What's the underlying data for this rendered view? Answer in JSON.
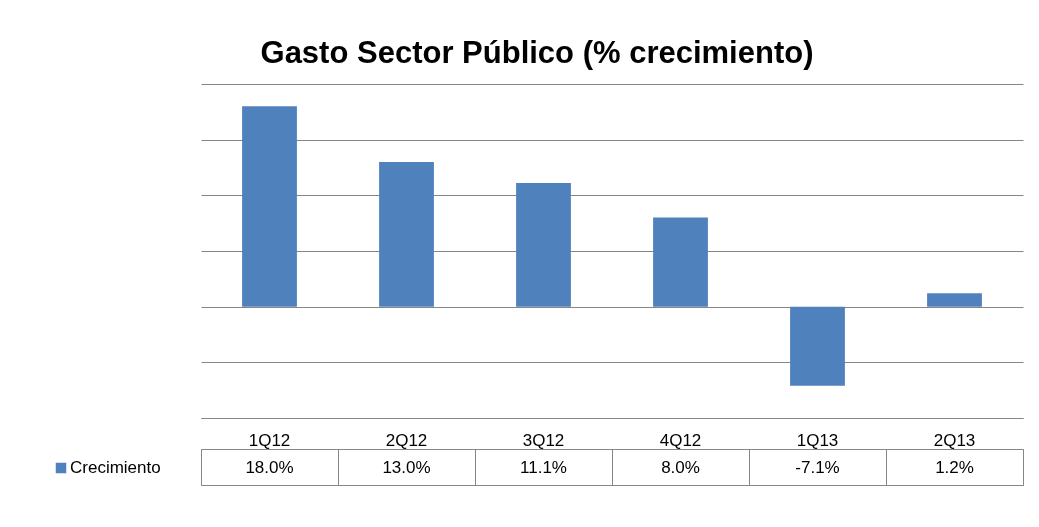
{
  "chart_data": {
    "type": "bar",
    "title": "Gasto Sector Público (% crecimiento)",
    "categories": [
      "1Q12",
      "2Q12",
      "3Q12",
      "4Q12",
      "1Q13",
      "2Q13"
    ],
    "series": [
      {
        "name": "Crecimiento",
        "color": "#4f81bd",
        "values": [
          18.0,
          13.0,
          11.1,
          8.0,
          -7.1,
          1.2
        ],
        "value_labels": [
          "18.0%",
          "13.0%",
          "11.1%",
          "8.0%",
          "-7.1%",
          "1.2%"
        ]
      }
    ],
    "ylim": [
      -10,
      20
    ],
    "yticks": [
      {
        "value": -10,
        "label": null
      },
      {
        "value": -5,
        "label": null
      },
      {
        "value": 0,
        "label": null
      },
      {
        "value": 5,
        "label": null
      },
      {
        "value": 10,
        "label": null
      },
      {
        "value": 15,
        "label": null
      },
      {
        "value": 20,
        "label": null
      }
    ],
    "grid": "y",
    "tick_labels": "x",
    "legend": "bottom"
  }
}
